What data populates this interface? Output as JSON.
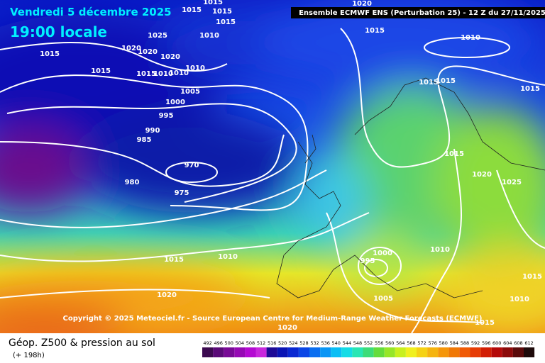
{
  "header": {
    "date": "Vendredi 5 décembre 2025",
    "time": "19:00 locale",
    "model": "Ensemble ECMWF ENS  (Perturbation 25)  - 12 Z du 27/11/2025"
  },
  "copyright": "Copyright © 2025 Meteociel.fr - Source European Centre for Medium-Range Weather Forecasts (ECMWF)",
  "footer": {
    "title": "Géop. Z500 & pression au sol",
    "lead": "(+ 198h)"
  },
  "isobar_labels": [
    "1015",
    "1015",
    "1015",
    "1010",
    "1015",
    "1025",
    "1020",
    "1020",
    "1020",
    "1015",
    "1015",
    "1015",
    "1010",
    "1010",
    "1010",
    "1005",
    "1000",
    "995",
    "990",
    "985",
    "970",
    "980",
    "975",
    "1015",
    "1010",
    "1015",
    "1015",
    "1015",
    "1015",
    "1020",
    "1025",
    "1010",
    "1000",
    "995",
    "1015",
    "1010",
    "1020",
    "1005",
    "1010",
    "1015",
    "1020",
    "1015",
    "1020"
  ],
  "colorbar": {
    "labels": [
      492,
      496,
      500,
      504,
      508,
      512,
      516,
      520,
      524,
      528,
      532,
      536,
      540,
      544,
      548,
      552,
      556,
      560,
      564,
      568,
      572,
      576,
      580,
      584,
      588,
      592,
      596,
      600,
      604,
      608,
      612
    ],
    "colors": [
      "#3c0a50",
      "#5a0a78",
      "#780a96",
      "#960ab4",
      "#b40ad2",
      "#c828dc",
      "#1e0a96",
      "#0a14b4",
      "#0a28d2",
      "#0a46e6",
      "#0a6ef0",
      "#0a96f5",
      "#0abef5",
      "#14dce6",
      "#28e6b4",
      "#3cdc78",
      "#64dc3c",
      "#96e628",
      "#c8f01e",
      "#f0f01e",
      "#f5d214",
      "#f5b40f",
      "#f5960a",
      "#f07805",
      "#f05a05",
      "#e63c05",
      "#d21e05",
      "#b40a0a",
      "#8c0a0a",
      "#5a0a0a",
      "#1e0a0a"
    ]
  }
}
